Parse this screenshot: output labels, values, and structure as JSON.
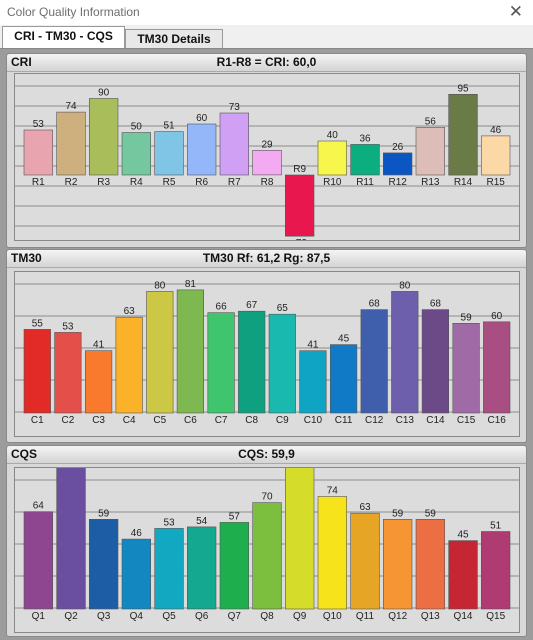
{
  "window": {
    "title": "Color Quality Information",
    "close_glyph": "✕"
  },
  "tabs": [
    {
      "label": "CRI - TM30 - CQS",
      "active": true
    },
    {
      "label": "TM30 Details",
      "active": false
    }
  ],
  "panels": {
    "cri": {
      "label": "CRI",
      "summary": "R1-R8 = CRI: 60,0"
    },
    "tm30": {
      "label": "TM30",
      "summary": "TM30   Rf: 61,2   Rg: 87,5"
    },
    "cqs": {
      "label": "CQS",
      "summary": "CQS: 59,9"
    }
  },
  "chart_data": [
    {
      "type": "bar",
      "title": "R1-R8 = CRI: 60,0",
      "categories": [
        "R1",
        "R2",
        "R3",
        "R4",
        "R5",
        "R6",
        "R7",
        "R8",
        "R9",
        "R10",
        "R11",
        "R12",
        "R13",
        "R14",
        "R15"
      ],
      "values": [
        53,
        74,
        90,
        50,
        51,
        60,
        73,
        29,
        -72,
        40,
        36,
        26,
        56,
        95,
        46
      ],
      "colors": [
        "#e8a5b0",
        "#cdb07e",
        "#a9bd5b",
        "#74c79e",
        "#80c4e6",
        "#93b7f8",
        "#cfa0f3",
        "#f3aaf0",
        "#e8174d",
        "#f6f64c",
        "#0cad7e",
        "#0c56c4",
        "#ddbdb8",
        "#6b7b47",
        "#fbd8a6"
      ],
      "ylim": [
        -100,
        100
      ],
      "grid": true
    },
    {
      "type": "bar",
      "title": "TM30   Rf: 61,2   Rg: 87,5",
      "categories": [
        "C1",
        "C2",
        "C3",
        "C4",
        "C5",
        "C6",
        "C7",
        "C8",
        "C9",
        "C10",
        "C11",
        "C12",
        "C13",
        "C14",
        "C15",
        "C16"
      ],
      "values": [
        55,
        53,
        41,
        63,
        80,
        81,
        66,
        67,
        65,
        41,
        45,
        68,
        80,
        68,
        59,
        60
      ],
      "colors": [
        "#e22a26",
        "#e44f4a",
        "#f97a2c",
        "#fbb128",
        "#cdc746",
        "#7eb850",
        "#3ec56e",
        "#0fa080",
        "#1ab9af",
        "#0fa4c3",
        "#107ac7",
        "#3f5eab",
        "#6d5fab",
        "#6c4a88",
        "#9f6aa6",
        "#a84e82"
      ],
      "ylim": [
        0,
        100
      ],
      "grid": true
    },
    {
      "type": "bar",
      "title": "CQS: 59,9",
      "categories": [
        "Q1",
        "Q2",
        "Q3",
        "Q4",
        "Q5",
        "Q6",
        "Q7",
        "Q8",
        "Q9",
        "Q10",
        "Q11",
        "Q12",
        "Q13",
        "Q14",
        "Q15"
      ],
      "values": [
        64,
        96,
        59,
        46,
        53,
        54,
        57,
        70,
        93,
        74,
        63,
        59,
        59,
        45,
        51
      ],
      "colors": [
        "#8e4690",
        "#6a4ea0",
        "#1d5da6",
        "#1387bf",
        "#13a8c1",
        "#15a890",
        "#1fae4e",
        "#7cbf3f",
        "#d5dd2a",
        "#f6e31c",
        "#e7a526",
        "#f69534",
        "#ec6e43",
        "#c62533",
        "#b03a72"
      ],
      "ylim": [
        0,
        100
      ],
      "grid": true
    }
  ]
}
